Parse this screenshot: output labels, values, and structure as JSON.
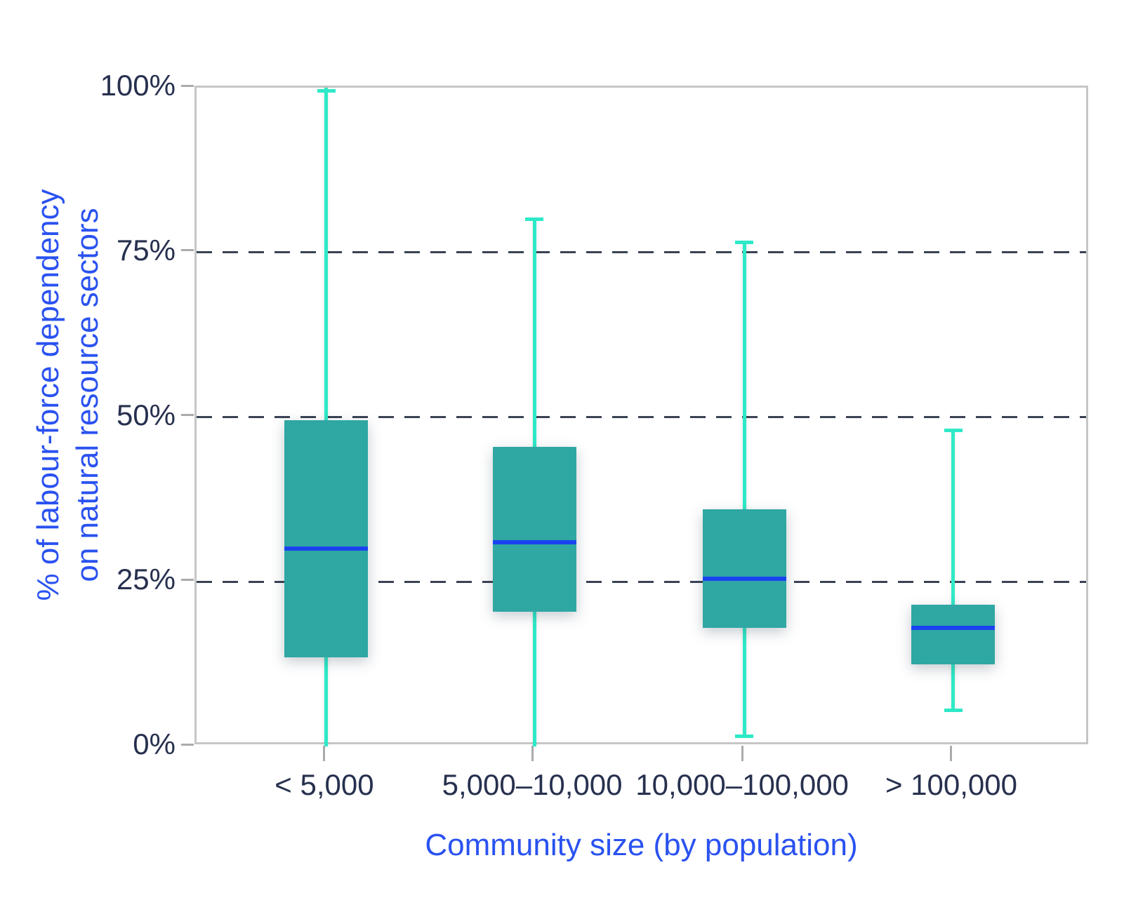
{
  "chart_data": {
    "type": "boxplot",
    "title": "",
    "xlabel": "Community size (by population)",
    "ylabel": "% of labour-force dependency on natural resource sectors",
    "ylabel_lines": [
      "% of labour-force dependency",
      "on natural resource sectors"
    ],
    "ylim": [
      0,
      100
    ],
    "yticks": [
      {
        "value": 0,
        "label": "0%"
      },
      {
        "value": 25,
        "label": "25%"
      },
      {
        "value": 50,
        "label": "50%"
      },
      {
        "value": 75,
        "label": "75%"
      },
      {
        "value": 100,
        "label": "100%"
      }
    ],
    "gridlines_at": [
      25,
      50,
      75
    ],
    "grid_style": "dashed",
    "categories": [
      "< 5,000",
      "5,000–10,000",
      "10,000–100,000",
      "> 100,000"
    ],
    "boxes": [
      {
        "category": "< 5,000",
        "whisker_low": 0,
        "q1": 13.5,
        "median": 30,
        "q3": 49.5,
        "whisker_high": 100
      },
      {
        "category": "5,000–10,000",
        "whisker_low": 0,
        "q1": 20.5,
        "median": 31,
        "q3": 45.5,
        "whisker_high": 80
      },
      {
        "category": "10,000–100,000",
        "whisker_low": 1.5,
        "q1": 18,
        "median": 25.5,
        "q3": 36,
        "whisker_high": 76.5
      },
      {
        "category": "> 100,000",
        "whisker_low": 5.5,
        "q1": 12.5,
        "median": 18,
        "q3": 21.5,
        "whisker_high": 48
      }
    ],
    "colors": {
      "box_fill": "#2FA7A3",
      "median_line": "#1A43F0",
      "whisker": "#2EE9C7",
      "gridline": "#3A4254",
      "axis_frame": "#C6C6C6",
      "tick_mark": "#ABABAB",
      "tick_label": "#27304E",
      "axis_title": "#2A52F0",
      "background": "#FFFFFF"
    }
  }
}
